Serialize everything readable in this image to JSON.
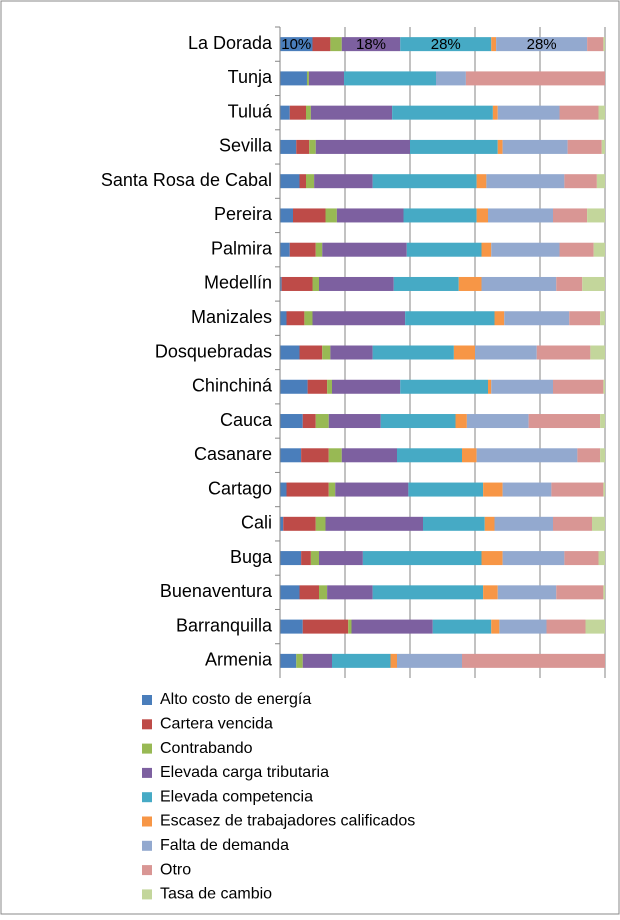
{
  "chart_data": {
    "type": "stacked_bar_horizontal",
    "categories": [
      "La Dorada",
      "Tunja",
      "Tuluá",
      "Sevilla",
      "Santa Rosa de Cabal",
      "Pereira",
      "Palmira",
      "Medellín",
      "Manizales",
      "Dosquebradas",
      "Chinchiná",
      "Cauca",
      "Casanare",
      "Cartago",
      "Cali",
      "Buga",
      "Buenaventura",
      "Barranquilla",
      "Armenia"
    ],
    "xlim": [
      0,
      100
    ],
    "xticks": [
      0,
      20,
      40,
      60,
      80,
      100
    ],
    "grid": true,
    "series": [
      {
        "name": "Alto costo de energía",
        "color": "#4a7ebb",
        "values": [
          10,
          8.3,
          3,
          5,
          6,
          4,
          3,
          0.5,
          2,
          6,
          8.5,
          7,
          6.5,
          2,
          1,
          6.5,
          6,
          7,
          5
        ],
        "value_labels": [
          "10%",
          null,
          null,
          null,
          null,
          null,
          null,
          null,
          null,
          null,
          null,
          null,
          null,
          null,
          null,
          null,
          null,
          null,
          null
        ]
      },
      {
        "name": "Cartera vencida",
        "color": "#be4b48",
        "values": [
          5.5,
          0,
          5,
          4,
          2,
          10,
          8,
          9.5,
          5.5,
          7,
          6,
          4,
          8.5,
          13,
          10,
          3,
          6,
          14,
          0
        ]
      },
      {
        "name": "Contrabando",
        "color": "#98b954",
        "values": [
          3.5,
          0.6,
          1.5,
          2,
          2.5,
          3.5,
          2,
          2,
          2.5,
          2.5,
          1.5,
          4,
          4,
          2,
          3,
          2.5,
          2.5,
          1,
          2
        ]
      },
      {
        "name": "Elevada carga tributaria",
        "color": "#7d60a0",
        "values": [
          18,
          10.8,
          25,
          29,
          18,
          20.5,
          26,
          23,
          28.5,
          13,
          21,
          16,
          17,
          22.5,
          30,
          13.5,
          14,
          25,
          9
        ],
        "value_labels": [
          "18%",
          null,
          null,
          null,
          null,
          null,
          null,
          null,
          null,
          null,
          null,
          null,
          null,
          null,
          null,
          null,
          null,
          null,
          null
        ]
      },
      {
        "name": "Elevada competencia",
        "color": "#46aac5",
        "values": [
          28,
          28.3,
          31,
          27,
          32,
          22.5,
          23,
          20,
          27.5,
          25,
          27,
          23,
          20,
          23,
          19,
          36.5,
          34,
          18,
          18
        ],
        "value_labels": [
          "28%",
          null,
          null,
          null,
          null,
          null,
          null,
          null,
          null,
          null,
          null,
          null,
          null,
          null,
          null,
          null,
          null,
          null,
          null
        ]
      },
      {
        "name": "Escasez de trabajadores calificados",
        "color": "#f79646",
        "values": [
          1.5,
          0,
          1.5,
          1.5,
          3,
          3.5,
          3,
          7,
          3,
          6.5,
          1,
          3.5,
          4.5,
          6,
          3,
          6.5,
          4.5,
          2.5,
          2
        ]
      },
      {
        "name": "Falta de demanda",
        "color": "#93a9cf",
        "values": [
          28,
          9.2,
          19,
          20,
          24,
          20,
          21,
          23,
          20,
          19,
          19,
          19,
          31,
          15,
          18,
          19,
          18,
          14.5,
          20
        ],
        "value_labels": [
          "28%",
          null,
          null,
          null,
          null,
          null,
          null,
          null,
          null,
          null,
          null,
          null,
          null,
          null,
          null,
          null,
          null,
          null,
          null
        ]
      },
      {
        "name": "Otro",
        "color": "#d99694",
        "values": [
          5,
          42.8,
          12,
          10.5,
          10,
          10.5,
          10.5,
          8,
          9.5,
          16.5,
          15.5,
          22,
          7,
          16,
          12,
          10.5,
          14.5,
          12,
          44
        ]
      },
      {
        "name": "Tasa de cambio",
        "color": "#c3d69b",
        "values": [
          0.5,
          0,
          2,
          1,
          2.5,
          5.5,
          3.5,
          7,
          1.5,
          4.5,
          0.5,
          1.5,
          1.5,
          0.5,
          4,
          2,
          0.5,
          6,
          0
        ]
      }
    ]
  }
}
